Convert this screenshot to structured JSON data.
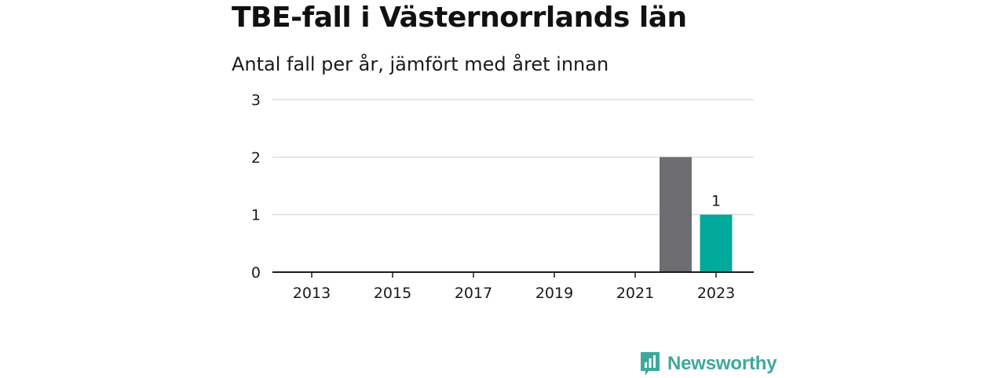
{
  "title": "TBE-fall i Västernorrlands län",
  "subtitle": "Antal fall per år, jämfört med året innan",
  "brand": {
    "name": "Newsworthy",
    "icon": "newsworthy-bar-chart-icon",
    "color": "#3ea89b"
  },
  "chart_data": {
    "type": "bar",
    "categories": [
      "2013",
      "2014",
      "2015",
      "2016",
      "2017",
      "2018",
      "2019",
      "2020",
      "2021",
      "2022",
      "2023"
    ],
    "values": [
      0,
      0,
      0,
      0,
      0,
      0,
      0,
      0,
      0,
      2,
      1
    ],
    "x_tick_labels": [
      "2013",
      "2015",
      "2017",
      "2019",
      "2021",
      "2023"
    ],
    "y_ticks": [
      0,
      1,
      2,
      3
    ],
    "ylim": [
      0,
      3
    ],
    "grid": true,
    "colors": {
      "previous_year": "#6e6d72",
      "current_year": "#00a99a",
      "grid": "#dddddd",
      "axis": "#1a1a1a"
    },
    "highlight": [
      {
        "category": "2022",
        "role": "previous_year"
      },
      {
        "category": "2023",
        "role": "current_year"
      }
    ],
    "data_labels": [
      {
        "category": "2023",
        "text": "1"
      }
    ],
    "xlabel": "",
    "ylabel": ""
  }
}
